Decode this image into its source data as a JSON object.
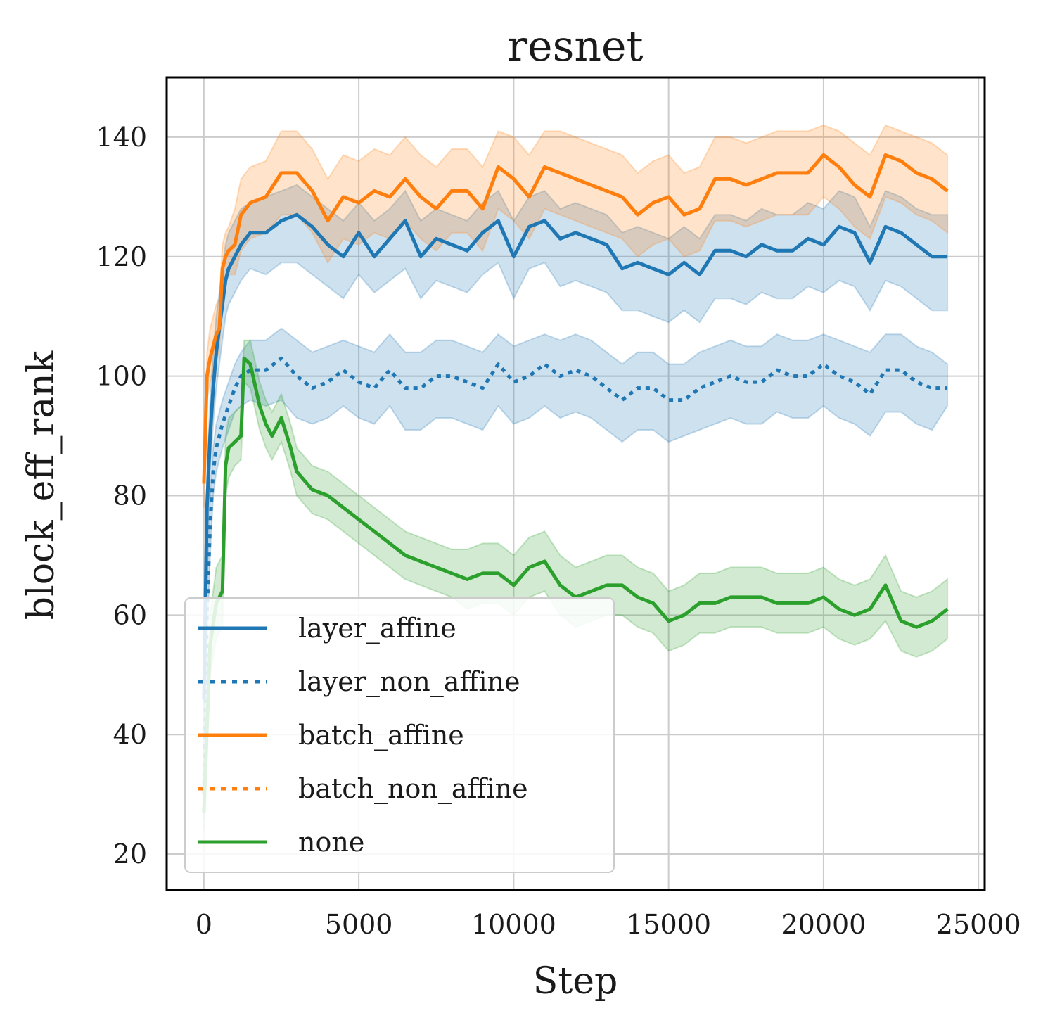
{
  "chart_data": {
    "type": "line",
    "title": "resnet",
    "xlabel": "Step",
    "ylabel": "block_eff_rank",
    "xlim": [
      -1200,
      25200
    ],
    "ylim": [
      14,
      150
    ],
    "xticks": [
      0,
      5000,
      10000,
      15000,
      20000,
      25000
    ],
    "yticks": [
      20,
      40,
      60,
      80,
      100,
      120,
      140
    ],
    "grid": true,
    "legend_position": "lower-left",
    "series": [
      {
        "name": "layer_affine",
        "color": "#1f77b4",
        "style": "solid",
        "x": [
          0,
          100,
          200,
          300,
          400,
          500,
          600,
          700,
          800,
          1000,
          1200,
          1500,
          2000,
          2500,
          3000,
          3500,
          4000,
          4500,
          5000,
          5500,
          6000,
          6500,
          7000,
          7500,
          8000,
          8500,
          9000,
          9500,
          10000,
          10500,
          11000,
          11500,
          12000,
          12500,
          13000,
          13500,
          14000,
          14500,
          15000,
          15500,
          16000,
          16500,
          17000,
          17500,
          18000,
          18500,
          19000,
          19500,
          20000,
          20500,
          21000,
          21500,
          22000,
          22500,
          23000,
          23500,
          24000
        ],
        "y": [
          46,
          78,
          90,
          98,
          104,
          108,
          112,
          116,
          118,
          120,
          122,
          124,
          124,
          126,
          127,
          125,
          122,
          120,
          124,
          120,
          123,
          126,
          120,
          123,
          122,
          121,
          124,
          126,
          120,
          125,
          126,
          123,
          124,
          123,
          122,
          118,
          119,
          118,
          117,
          119,
          117,
          121,
          121,
          120,
          122,
          121,
          121,
          123,
          122,
          125,
          124,
          119,
          125,
          124,
          122,
          120,
          120
        ],
        "lower": [
          40,
          72,
          84,
          92,
          98,
          102,
          106,
          110,
          112,
          114,
          116,
          118,
          117,
          119,
          119,
          117,
          115,
          113,
          117,
          114,
          116,
          118,
          113,
          116,
          115,
          114,
          117,
          119,
          113,
          118,
          119,
          115,
          116,
          115,
          114,
          111,
          111,
          110,
          109,
          111,
          109,
          113,
          113,
          112,
          114,
          113,
          113,
          115,
          114,
          116,
          115,
          111,
          116,
          115,
          113,
          111,
          111
        ],
        "upper": [
          52,
          84,
          96,
          104,
          110,
          114,
          118,
          122,
          124,
          126,
          128,
          129,
          130,
          131,
          132,
          130,
          128,
          126,
          129,
          126,
          128,
          131,
          126,
          128,
          127,
          126,
          129,
          131,
          126,
          130,
          131,
          128,
          129,
          128,
          127,
          124,
          125,
          124,
          123,
          125,
          123,
          127,
          127,
          126,
          128,
          127,
          127,
          129,
          128,
          131,
          130,
          125,
          131,
          130,
          128,
          127,
          127
        ]
      },
      {
        "name": "layer_non_affine",
        "color": "#1f77b4",
        "style": "dotted",
        "x": [
          0,
          100,
          200,
          300,
          400,
          500,
          600,
          800,
          1000,
          1200,
          1500,
          2000,
          2500,
          3000,
          3500,
          4000,
          4500,
          5000,
          5500,
          6000,
          6500,
          7000,
          7500,
          8000,
          8500,
          9000,
          9500,
          10000,
          10500,
          11000,
          11500,
          12000,
          12500,
          13000,
          13500,
          14000,
          14500,
          15000,
          15500,
          16000,
          16500,
          17000,
          17500,
          18000,
          18500,
          19000,
          19500,
          20000,
          20500,
          21000,
          21500,
          22000,
          22500,
          23000,
          23500,
          24000
        ],
        "y": [
          30,
          60,
          75,
          84,
          88,
          90,
          92,
          95,
          98,
          100,
          101,
          101,
          103,
          100,
          98,
          99,
          101,
          99,
          98,
          101,
          98,
          98,
          100,
          100,
          99,
          98,
          102,
          99,
          100,
          102,
          100,
          101,
          100,
          98,
          96,
          98,
          98,
          96,
          96,
          98,
          99,
          100,
          99,
          99,
          101,
          100,
          100,
          102,
          100,
          99,
          97,
          101,
          101,
          99,
          98,
          98
        ],
        "lower": [
          26,
          55,
          70,
          80,
          84,
          86,
          88,
          91,
          94,
          95,
          96,
          95,
          96,
          93,
          92,
          93,
          95,
          93,
          92,
          95,
          91,
          91,
          93,
          93,
          92,
          91,
          95,
          92,
          93,
          95,
          93,
          94,
          93,
          91,
          89,
          91,
          91,
          89,
          90,
          91,
          92,
          93,
          92,
          92,
          94,
          93,
          93,
          95,
          93,
          92,
          90,
          94,
          94,
          92,
          91,
          95
        ],
        "upper": [
          34,
          65,
          80,
          88,
          92,
          94,
          96,
          99,
          102,
          104,
          106,
          106,
          108,
          106,
          104,
          105,
          106,
          105,
          104,
          107,
          104,
          104,
          106,
          106,
          105,
          104,
          107,
          105,
          106,
          107,
          106,
          107,
          106,
          104,
          102,
          104,
          104,
          102,
          102,
          104,
          105,
          106,
          105,
          105,
          107,
          106,
          106,
          107,
          106,
          105,
          104,
          107,
          107,
          105,
          104,
          102
        ]
      },
      {
        "name": "batch_affine",
        "color": "#ff7f0e",
        "style": "solid",
        "x": [
          0,
          100,
          200,
          300,
          400,
          500,
          600,
          700,
          800,
          1000,
          1200,
          1500,
          2000,
          2500,
          3000,
          3500,
          4000,
          4500,
          5000,
          5500,
          6000,
          6500,
          7000,
          7500,
          8000,
          8500,
          9000,
          9500,
          10000,
          10500,
          11000,
          11500,
          12000,
          12500,
          13000,
          13500,
          14000,
          14500,
          15000,
          15500,
          16000,
          16500,
          17000,
          17500,
          18000,
          18500,
          19000,
          19500,
          20000,
          20500,
          21000,
          21500,
          22000,
          22500,
          23000,
          23500,
          24000
        ],
        "y": [
          82,
          100,
          103,
          105,
          107,
          108,
          118,
          120,
          121,
          122,
          127,
          129,
          130,
          134,
          134,
          131,
          126,
          130,
          129,
          131,
          130,
          133,
          130,
          128,
          131,
          131,
          128,
          135,
          133,
          130,
          135,
          134,
          133,
          132,
          131,
          130,
          127,
          129,
          130,
          127,
          128,
          133,
          133,
          132,
          133,
          134,
          134,
          134,
          137,
          135,
          132,
          130,
          137,
          136,
          134,
          133,
          131
        ],
        "lower": [
          78,
          96,
          99,
          101,
          103,
          104,
          114,
          116,
          117,
          117,
          121,
          123,
          124,
          127,
          127,
          124,
          119,
          123,
          122,
          124,
          123,
          126,
          123,
          121,
          124,
          124,
          121,
          128,
          126,
          123,
          128,
          127,
          126,
          125,
          124,
          123,
          120,
          122,
          123,
          120,
          121,
          126,
          126,
          125,
          126,
          127,
          127,
          127,
          130,
          128,
          125,
          123,
          130,
          129,
          127,
          126,
          124
        ],
        "upper": [
          86,
          104,
          108,
          110,
          112,
          113,
          122,
          124,
          125,
          128,
          133,
          135,
          136,
          141,
          141,
          138,
          133,
          137,
          136,
          138,
          137,
          140,
          137,
          135,
          138,
          138,
          135,
          141,
          140,
          137,
          141,
          141,
          140,
          139,
          138,
          137,
          134,
          136,
          137,
          134,
          135,
          140,
          140,
          139,
          140,
          141,
          141,
          141,
          142,
          141,
          139,
          137,
          142,
          141,
          140,
          139,
          137
        ]
      },
      {
        "name": "batch_non_affine",
        "color": "#ff7f0e",
        "style": "dotted",
        "x": [],
        "y": []
      },
      {
        "name": "none",
        "color": "#2ca02c",
        "style": "solid",
        "x": [
          0,
          200,
          400,
          600,
          700,
          800,
          1000,
          1200,
          1300,
          1500,
          1800,
          2000,
          2200,
          2500,
          2800,
          3000,
          3500,
          4000,
          4500,
          5000,
          5500,
          6000,
          6500,
          7000,
          7500,
          8000,
          8500,
          9000,
          9500,
          10000,
          10500,
          11000,
          11500,
          12000,
          12500,
          13000,
          13500,
          14000,
          14500,
          15000,
          15500,
          16000,
          16500,
          17000,
          17500,
          18000,
          18500,
          19000,
          19500,
          20000,
          20500,
          21000,
          21500,
          22000,
          22500,
          23000,
          23500,
          24000
        ],
        "y": [
          27,
          55,
          62,
          64,
          85,
          88,
          89,
          90,
          103,
          102,
          95,
          92,
          90,
          93,
          88,
          84,
          81,
          80,
          78,
          76,
          74,
          72,
          70,
          69,
          68,
          67,
          66,
          67,
          67,
          65,
          68,
          69,
          65,
          63,
          64,
          65,
          65,
          63,
          62,
          59,
          60,
          62,
          62,
          63,
          63,
          63,
          62,
          62,
          62,
          63,
          61,
          60,
          61,
          65,
          59,
          58,
          59,
          61
        ],
        "lower": [
          24,
          50,
          56,
          58,
          80,
          83,
          85,
          86,
          99,
          98,
          91,
          88,
          86,
          89,
          84,
          80,
          77,
          76,
          74,
          72,
          70,
          68,
          66,
          65,
          64,
          63,
          61,
          62,
          62,
          60,
          63,
          64,
          60,
          58,
          59,
          60,
          60,
          58,
          57,
          54,
          55,
          57,
          57,
          58,
          58,
          58,
          57,
          57,
          57,
          58,
          56,
          55,
          56,
          59,
          54,
          53,
          54,
          56
        ],
        "upper": [
          30,
          60,
          68,
          70,
          90,
          93,
          94,
          95,
          106,
          106,
          99,
          96,
          94,
          97,
          92,
          88,
          85,
          84,
          82,
          80,
          78,
          76,
          74,
          73,
          72,
          71,
          71,
          72,
          72,
          70,
          73,
          74,
          70,
          68,
          69,
          70,
          70,
          68,
          67,
          64,
          65,
          67,
          67,
          68,
          68,
          68,
          67,
          67,
          67,
          68,
          66,
          65,
          66,
          70,
          64,
          63,
          64,
          66
        ]
      }
    ]
  }
}
